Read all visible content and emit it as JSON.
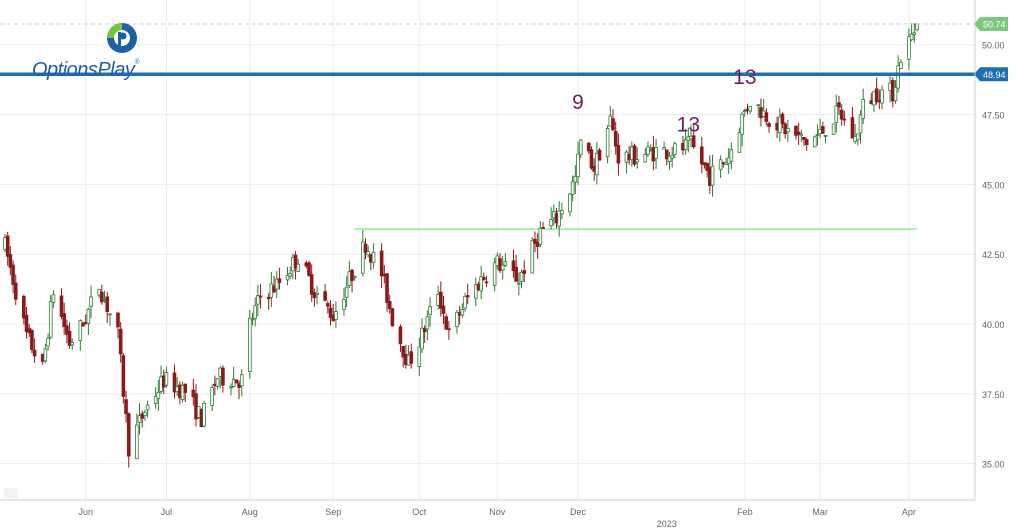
{
  "logo": {
    "text": "OptionsPlay",
    "tm": "®"
  },
  "colors": {
    "up": "#2e7d32",
    "down": "#8b1a1a",
    "resistance": "#1e6fb0",
    "support": "#90ee90",
    "price_tag": "#7cc97c",
    "annotation": "#6b2167",
    "grid": "#ececec"
  },
  "chart_data": {
    "type": "candlestick",
    "title": "",
    "ylim": [
      33.7,
      51.6
    ],
    "yticks": [
      35.0,
      37.5,
      40.0,
      42.5,
      45.0,
      47.5,
      50.0
    ],
    "ytick_labels": [
      "35.00",
      "37.50",
      "40.00",
      "42.50",
      "45.00",
      "47.50",
      "50.00"
    ],
    "x_labels": [
      {
        "label": "Jun",
        "date": "2022-06-01"
      },
      {
        "label": "Jul",
        "date": "2022-07-01"
      },
      {
        "label": "Aug",
        "date": "2022-08-01"
      },
      {
        "label": "Sep",
        "date": "2022-09-01"
      },
      {
        "label": "Oct",
        "date": "2022-10-03"
      },
      {
        "label": "Nov",
        "date": "2022-11-01"
      },
      {
        "label": "Dec",
        "date": "2022-12-01"
      },
      {
        "label": "Feb",
        "date": "2023-02-01"
      },
      {
        "label": "Mar",
        "date": "2023-03-01"
      },
      {
        "label": "Apr",
        "date": "2023-04-03"
      }
    ],
    "year_label": {
      "label": "2023",
      "date": "2023-01-03"
    },
    "price_levels": {
      "last_price": {
        "value": 50.74,
        "label": "50.74"
      },
      "resistance": {
        "value": 48.94,
        "label": "48.94"
      },
      "support": {
        "value": 43.4,
        "start": "2022-09-09",
        "end": "2023-04-06"
      }
    },
    "annotations": [
      {
        "text": "9",
        "date": "2022-12-01",
        "price": 47.7
      },
      {
        "text": "13",
        "date": "2023-01-11",
        "price": 46.9
      },
      {
        "text": "13",
        "date": "2023-02-01",
        "price": 48.6
      }
    ],
    "trend_anchors": [
      [
        "2022-05-02",
        42.8
      ],
      [
        "2022-05-10",
        39.6
      ],
      [
        "2022-05-16",
        38.4
      ],
      [
        "2022-05-20",
        41.2
      ],
      [
        "2022-05-26",
        39.3
      ],
      [
        "2022-05-31",
        40.0
      ],
      [
        "2022-06-06",
        41.4
      ],
      [
        "2022-06-13",
        39.6
      ],
      [
        "2022-06-17",
        35.6
      ],
      [
        "2022-06-23",
        36.9
      ],
      [
        "2022-06-30",
        38.0
      ],
      [
        "2022-07-08",
        37.6
      ],
      [
        "2022-07-14",
        36.6
      ],
      [
        "2022-07-20",
        38.1
      ],
      [
        "2022-07-29",
        38.0
      ],
      [
        "2022-08-01",
        40.0
      ],
      [
        "2022-08-05",
        41.0
      ],
      [
        "2022-08-11",
        41.4
      ],
      [
        "2022-08-19",
        42.4
      ],
      [
        "2022-08-25",
        41.2
      ],
      [
        "2022-09-01",
        40.3
      ],
      [
        "2022-09-08",
        41.8
      ],
      [
        "2022-09-13",
        42.9
      ],
      [
        "2022-09-19",
        41.8
      ],
      [
        "2022-09-23",
        40.2
      ],
      [
        "2022-09-29",
        38.6
      ],
      [
        "2022-10-04",
        39.6
      ],
      [
        "2022-10-10",
        41.2
      ],
      [
        "2022-10-14",
        39.6
      ],
      [
        "2022-10-20",
        40.8
      ],
      [
        "2022-10-26",
        41.6
      ],
      [
        "2022-11-01",
        42.2
      ],
      [
        "2022-11-09",
        41.6
      ],
      [
        "2022-11-17",
        43.3
      ],
      [
        "2022-11-23",
        43.8
      ],
      [
        "2022-11-30",
        45.2
      ],
      [
        "2022-12-02",
        46.5
      ],
      [
        "2022-12-07",
        45.6
      ],
      [
        "2022-12-13",
        47.3
      ],
      [
        "2022-12-16",
        46.0
      ],
      [
        "2022-12-23",
        46.0
      ],
      [
        "2022-12-30",
        46.2
      ],
      [
        "2023-01-06",
        46.2
      ],
      [
        "2023-01-12",
        46.4
      ],
      [
        "2023-01-19",
        45.3
      ],
      [
        "2023-01-26",
        46.0
      ],
      [
        "2023-01-31",
        47.4
      ],
      [
        "2023-02-03",
        48.0
      ],
      [
        "2023-02-10",
        47.4
      ],
      [
        "2023-02-17",
        46.9
      ],
      [
        "2023-02-24",
        46.5
      ],
      [
        "2023-03-01",
        46.8
      ],
      [
        "2023-03-08",
        47.6
      ],
      [
        "2023-03-14",
        46.6
      ],
      [
        "2023-03-17",
        47.8
      ],
      [
        "2023-03-22",
        48.3
      ],
      [
        "2023-03-28",
        48.3
      ],
      [
        "2023-03-31",
        49.6
      ],
      [
        "2023-04-04",
        50.3
      ],
      [
        "2023-04-06",
        50.74
      ]
    ]
  }
}
